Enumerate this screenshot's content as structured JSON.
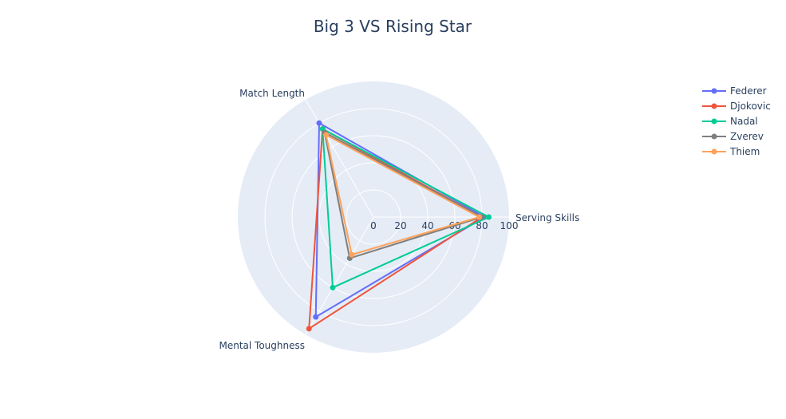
{
  "chart_data": {
    "type": "radar",
    "title": "Big 3 VS Rising Star",
    "axes": [
      "Serving Skills",
      "Match Length",
      "Mental Toughness"
    ],
    "radial_range": [
      0,
      100
    ],
    "radial_ticks": [
      0,
      20,
      40,
      60,
      80,
      100
    ],
    "grid": true,
    "legend_position": "top-right",
    "series": [
      {
        "name": "Federer",
        "color": "#636efa",
        "values": [
          82,
          80,
          85
        ]
      },
      {
        "name": "Djokovic",
        "color": "#ef553b",
        "values": [
          80,
          75,
          95
        ]
      },
      {
        "name": "Nadal",
        "color": "#00cc96",
        "values": [
          85,
          75,
          60
        ]
      },
      {
        "name": "Zverev",
        "color": "#7f7f7f",
        "values": [
          80,
          72,
          35
        ]
      },
      {
        "name": "Thiem",
        "color": "#ffa15a",
        "values": [
          78,
          70,
          32
        ]
      }
    ]
  }
}
